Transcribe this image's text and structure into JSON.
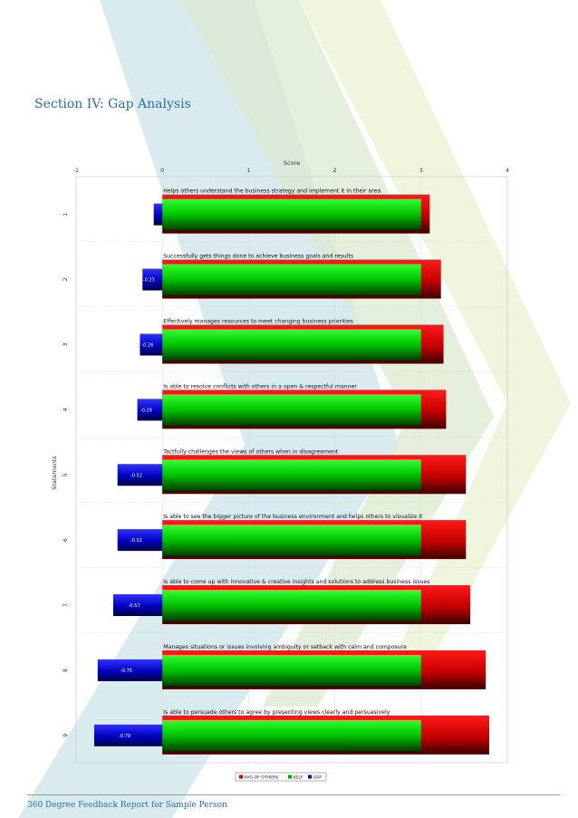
{
  "section_title": "Section IV: Gap Analysis",
  "footer": "360 Degree Feedback Report for Sample Person",
  "colors": {
    "title": "#2e6f9a",
    "avg_others": "#cc0000",
    "self": "#00aa00",
    "gap": "#0000cc"
  },
  "chart_data": {
    "type": "bar",
    "orientation": "horizontal",
    "xlabel": "Score",
    "ylabel": "Statements",
    "xlim": [
      -1,
      4
    ],
    "xticks": [
      "-1",
      "0",
      "1",
      "2",
      "3",
      "4"
    ],
    "grid": true,
    "legend_position": "bottom-center",
    "categories": [
      "1",
      "2",
      "3",
      "4",
      "5",
      "6",
      "7",
      "8",
      "9"
    ],
    "statements": [
      "Helps others understand the business strategy and implement it in their area",
      "Successfully gets things done to achieve business goals and results",
      "Effectively manages resources to meet changing business priorities",
      "Is able to resolve conflicts with others in a open & respectful manner",
      "Tactfully challenges the views of others when in disagreement",
      "Is able to see the bigger picture of the business environment and helps others to visualize it",
      "Is able to come up with innovative & creative insights and solutions to address business issues",
      "Manages situations or issues involving ambiguity or setback with calm and composure",
      "Is able to persuade others to agree by presenting views clearly and persuasively"
    ],
    "series": [
      {
        "name": "AVG OF OTHERS",
        "values": [
          3.1,
          3.23,
          3.26,
          3.29,
          3.52,
          3.52,
          3.57,
          3.75,
          3.79
        ]
      },
      {
        "name": "SELF",
        "values": [
          3,
          3,
          3,
          3,
          3,
          3,
          3,
          3,
          3
        ]
      },
      {
        "name": "GAP",
        "values": [
          -0.1,
          -0.23,
          -0.26,
          -0.29,
          -0.52,
          -0.52,
          -0.57,
          -0.75,
          -0.79
        ]
      }
    ],
    "data_labels": [
      "",
      "-0.23",
      "-0.26",
      "-0.29",
      "-0.52",
      "-0.52",
      "-0.57",
      "-0.75",
      "-0.79"
    ]
  }
}
